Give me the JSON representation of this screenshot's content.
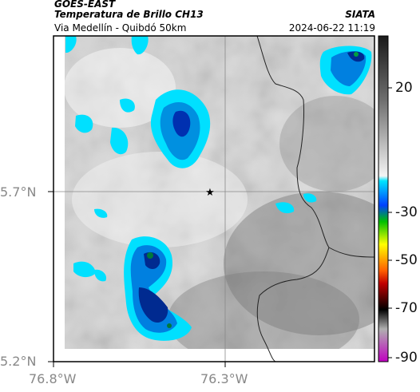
{
  "header": {
    "source": "GOES-EAST",
    "product": "Temperatura de Brillo CH13",
    "region": "Via Medellín - Quibdó 50km",
    "organization": "SIATA",
    "timestamp": "2024-06-22 11:19"
  },
  "map": {
    "lat_ticks": [
      "5.7°N",
      "5.2°N"
    ],
    "lon_ticks": [
      "76.8°W",
      "76.3°W"
    ],
    "marker": "star"
  },
  "colorbar": {
    "tick_labels": [
      "20",
      "-30",
      "-50",
      "-70",
      "-90"
    ],
    "colors": [
      "#1a1a1a",
      "#808080",
      "#ffffff",
      "#00ffff",
      "#0050ff",
      "#00c000",
      "#ffff00",
      "#ff4000",
      "#000000",
      "#c000c0"
    ]
  }
}
